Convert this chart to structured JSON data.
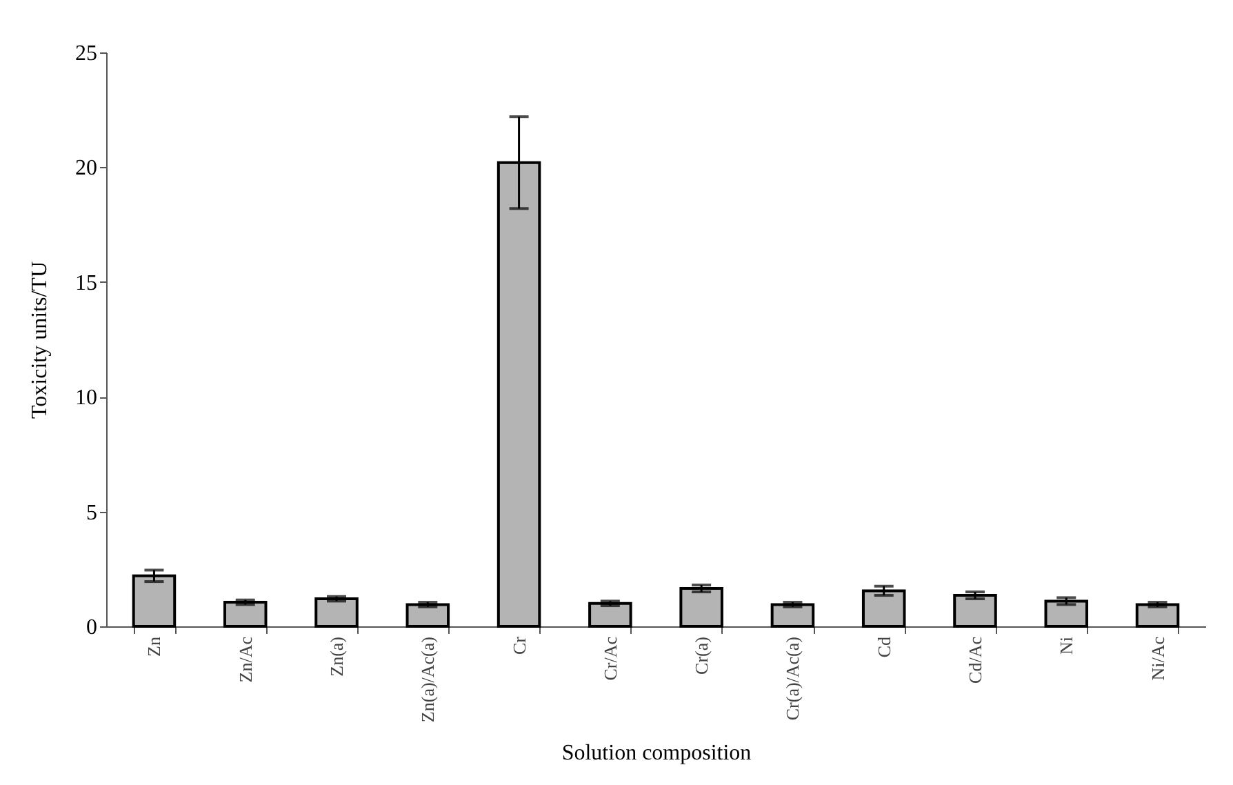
{
  "chart_data": {
    "type": "bar",
    "xlabel": "Solution composition",
    "ylabel": "Toxicity units/TU",
    "categories": [
      "Zn",
      "Zn/Ac",
      "Zn(a)",
      "Zn(a)/Ac(a)",
      "Cr",
      "Cr/Ac",
      "Cr(a)",
      "Cr(a)/Ac(a)",
      "Cd",
      "Cd/Ac",
      "Ni",
      "Ni/Ac"
    ],
    "values": [
      2.2,
      1.05,
      1.2,
      0.95,
      20.2,
      1.0,
      1.65,
      0.95,
      1.55,
      1.35,
      1.1,
      0.95
    ],
    "errors": [
      0.25,
      0.1,
      0.1,
      0.1,
      2.0,
      0.1,
      0.15,
      0.1,
      0.2,
      0.15,
      0.15,
      0.1
    ],
    "color": "#b4b4b4",
    "ylim": [
      0,
      25
    ],
    "yticks": [
      0,
      5,
      10,
      15,
      20,
      25
    ],
    "grid": false
  }
}
